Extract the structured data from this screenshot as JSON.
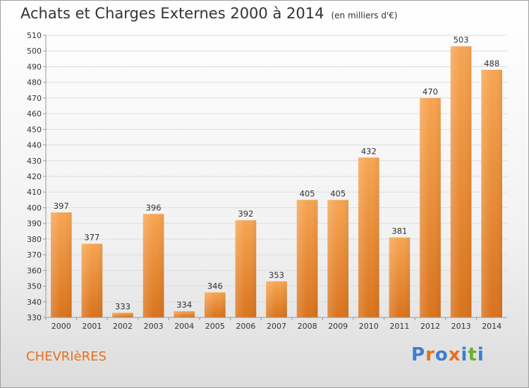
{
  "title": "Achats et Charges Externes 2000 à 2014",
  "subtitle": "(en milliers d'€)",
  "place_name": "CHEVRIèRES",
  "logo": {
    "text": "Proxiti",
    "letter_colors": [
      "#3a7fd0",
      "#e8701a",
      "#3a7fd0",
      "#e8701a",
      "#3a7fd0",
      "#66b032",
      "#3a7fd0"
    ]
  },
  "colors": {
    "bar_light": "#f7a552",
    "bar_dark": "#d9731c",
    "grid": "#dddddd",
    "axis": "#999999",
    "text": "#333333"
  },
  "chart_data": {
    "type": "bar",
    "categories": [
      "2000",
      "2001",
      "2002",
      "2003",
      "2004",
      "2005",
      "2006",
      "2007",
      "2008",
      "2009",
      "2010",
      "2011",
      "2012",
      "2013",
      "2014"
    ],
    "values": [
      397,
      377,
      333,
      396,
      334,
      346,
      392,
      353,
      405,
      405,
      432,
      381,
      470,
      503,
      488
    ],
    "ylim": [
      330,
      510
    ],
    "yticks": [
      330,
      340,
      350,
      360,
      370,
      380,
      390,
      400,
      410,
      420,
      430,
      440,
      450,
      460,
      470,
      480,
      490,
      500,
      510
    ],
    "xlabel": "",
    "ylabel": "",
    "grid": true,
    "data_labels": true
  }
}
